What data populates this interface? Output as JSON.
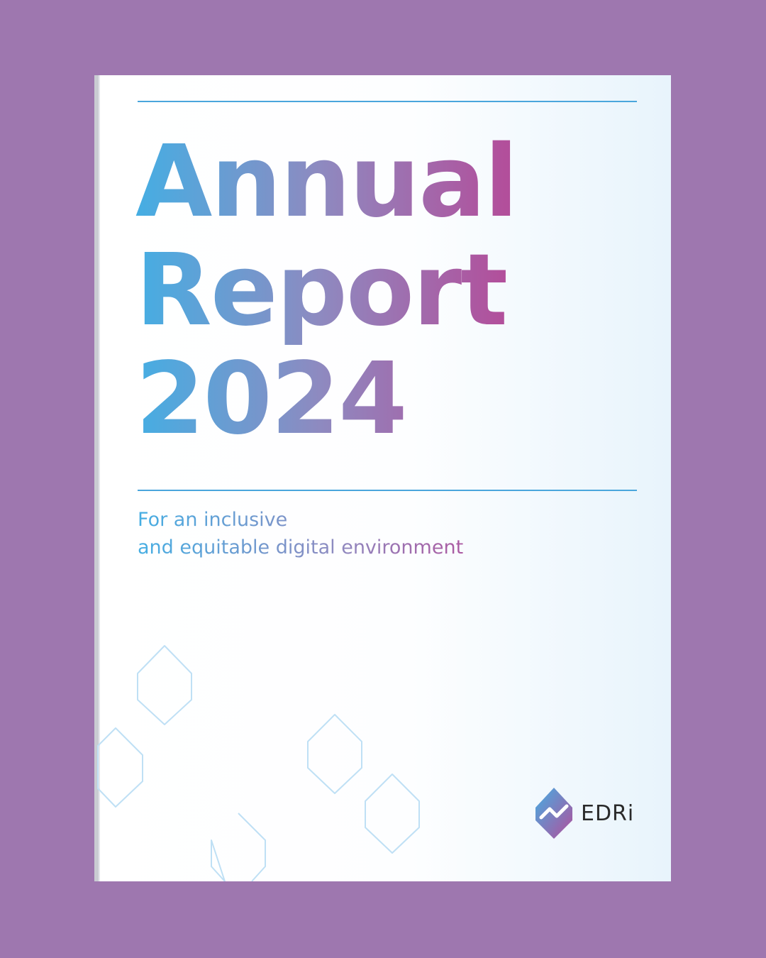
{
  "cover": {
    "title_lines": [
      "Annual",
      "Report",
      "2024"
    ],
    "subtitle_lines": [
      "For an inclusive",
      "and equitable digital environment"
    ]
  },
  "brand": {
    "name": "EDRi",
    "logo_icon": "edri-logo-icon"
  },
  "colors": {
    "background": "#9e77af",
    "accent_blue": "#45aee3",
    "accent_magenta": "#b24f9b",
    "rule": "#4aa6dc"
  }
}
